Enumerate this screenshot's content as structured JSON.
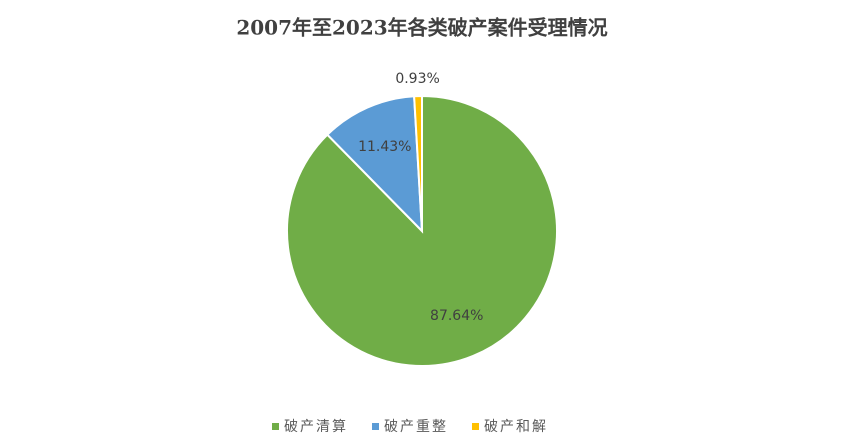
{
  "chart_data": {
    "type": "pie",
    "title": "2007年至2023年各类破产案件受理情况",
    "categories": [
      "破产清算",
      "破产重整",
      "破产和解"
    ],
    "values": [
      87.64,
      11.43,
      0.93
    ],
    "value_labels": [
      "87.64%",
      "11.43%",
      "0.93%"
    ],
    "colors": [
      "#70ad47",
      "#5b9bd5",
      "#ffc000"
    ],
    "legend": "bottom"
  }
}
